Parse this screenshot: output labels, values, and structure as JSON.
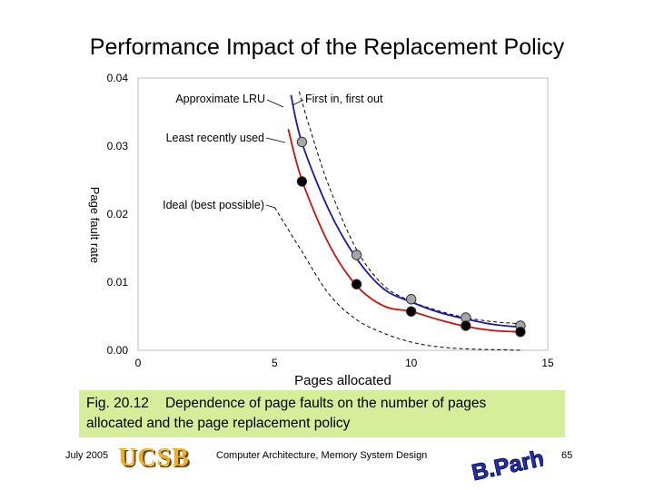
{
  "slide": {
    "title": "Performance Impact of the Replacement Policy",
    "caption_fig": "Fig. 20.12",
    "caption_text": "Dependence of page faults on the number of pages",
    "caption_text2": "allocated and the page replacement policy",
    "footer_date": "July 2005",
    "footer_center": "Computer Architecture, Memory System Design",
    "footer_page": "65",
    "logo_text": "UCSB",
    "signature_text": "B.Parhami"
  },
  "chart_data": {
    "type": "line",
    "title": "",
    "xlabel": "Pages allocated",
    "ylabel": "Page fault rate",
    "xlim": [
      0,
      15
    ],
    "ylim": [
      0,
      0.04
    ],
    "x_ticks": [
      "0",
      "5",
      "10",
      "15"
    ],
    "y_ticks": [
      "0.00",
      "0.01",
      "0.02",
      "0.03",
      "0.04"
    ],
    "grid": false,
    "annotations": [
      {
        "text": "Approximate LRU"
      },
      {
        "text": "First in, first out"
      },
      {
        "text": "Least recently used"
      },
      {
        "text": "Ideal (best possible)"
      }
    ],
    "series": [
      {
        "name": "First in, first out",
        "style": "dashed",
        "color": "#000000",
        "x": [
          5.9,
          6.3,
          7,
          8,
          9,
          10,
          11,
          12,
          13,
          14
        ],
        "y": [
          0.038,
          0.0325,
          0.024,
          0.0148,
          0.0095,
          0.0072,
          0.0058,
          0.0048,
          0.0042,
          0.0039
        ]
      },
      {
        "name": "Approximate LRU",
        "style": "solid",
        "color": "#1a1aa6",
        "x": [
          5.6,
          6,
          7,
          8,
          9,
          10,
          11,
          12,
          13,
          14
        ],
        "y": [
          0.0375,
          0.0305,
          0.0205,
          0.0135,
          0.009,
          0.0071,
          0.0056,
          0.0046,
          0.0038,
          0.0034
        ]
      },
      {
        "name": "Least recently used",
        "style": "solid",
        "color": "#cc1111",
        "x": [
          5.5,
          6,
          7,
          8,
          9,
          10,
          11,
          12,
          13,
          14
        ],
        "y": [
          0.0325,
          0.025,
          0.0155,
          0.0095,
          0.0065,
          0.0057,
          0.0045,
          0.0035,
          0.0029,
          0.0027
        ]
      },
      {
        "name": "Ideal (best possible)",
        "style": "dashed",
        "color": "#000000",
        "x": [
          5,
          6,
          7,
          8,
          9,
          10,
          11,
          12,
          13,
          14
        ],
        "y": [
          0.021,
          0.0145,
          0.0082,
          0.0045,
          0.0025,
          0.0012,
          0.0005,
          0.0002,
          0.0001,
          0.0
        ]
      },
      {
        "name": "Approximate LRU points",
        "style": "markers",
        "marker_color": "#a6a6a6",
        "x": [
          6,
          8,
          10,
          12,
          14
        ],
        "y": [
          0.0306,
          0.014,
          0.0075,
          0.0048,
          0.0036
        ]
      },
      {
        "name": "Least recently used points",
        "style": "markers",
        "marker_color": "#000000",
        "x": [
          6,
          8,
          10,
          12,
          14
        ],
        "y": [
          0.0248,
          0.0097,
          0.0057,
          0.0036,
          0.0027
        ]
      }
    ]
  }
}
